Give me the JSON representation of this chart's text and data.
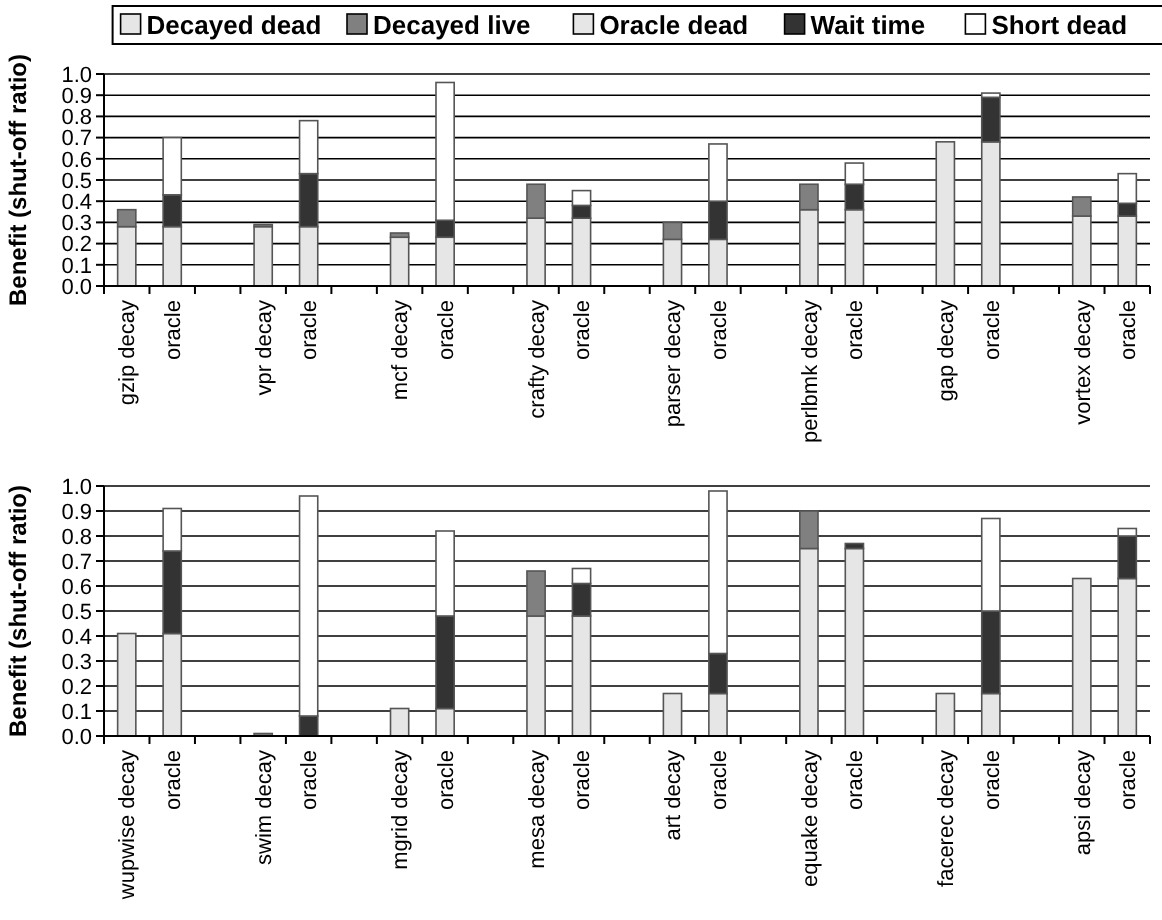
{
  "chart_data": [
    {
      "type": "bar",
      "stacked": true,
      "ylabel": "Benefit (shut-off ratio)",
      "legend": "top",
      "grid": "y",
      "ylim": [
        0,
        1
      ],
      "yticks": [
        {
          "value": 0,
          "label": "0.0"
        },
        {
          "value": 0.1,
          "label": "0.1"
        },
        {
          "value": 0.2,
          "label": "0.2"
        },
        {
          "value": 0.3,
          "label": "0.3"
        },
        {
          "value": 0.4,
          "label": "0.4"
        },
        {
          "value": 0.5,
          "label": "0.5"
        },
        {
          "value": 0.6,
          "label": "0.6"
        },
        {
          "value": 0.7,
          "label": "0.7"
        },
        {
          "value": 0.8,
          "label": "0.8"
        },
        {
          "value": 0.9,
          "label": "0.9"
        },
        {
          "value": 1,
          "label": "1.0"
        }
      ],
      "categories": [
        "gzip decay",
        "oracle",
        null,
        "vpr decay",
        "oracle",
        null,
        "mcf decay",
        "oracle",
        null,
        "crafty decay",
        "oracle",
        null,
        "parser decay",
        "oracle",
        null,
        "perlbmk decay",
        "oracle",
        null,
        "gap decay",
        "oracle",
        null,
        "vortex decay",
        "oracle"
      ],
      "series": [
        {
          "name": "Decayed dead",
          "color": "#e6e6e6",
          "values": [
            0.28,
            null,
            null,
            0.28,
            null,
            null,
            0.23,
            null,
            null,
            0.32,
            null,
            null,
            0.22,
            null,
            null,
            0.36,
            null,
            null,
            0.68,
            null,
            null,
            0.33,
            null
          ]
        },
        {
          "name": "Decayed live",
          "color": "#808080",
          "values": [
            0.08,
            null,
            null,
            0.01,
            null,
            null,
            0.02,
            null,
            null,
            0.16,
            null,
            null,
            0.08,
            null,
            null,
            0.12,
            null,
            null,
            null,
            null,
            null,
            0.09,
            null
          ]
        },
        {
          "name": "Oracle dead",
          "color": "#e6e6e6",
          "values": [
            null,
            0.28,
            null,
            null,
            0.28,
            null,
            null,
            0.23,
            null,
            null,
            0.32,
            null,
            null,
            0.22,
            null,
            null,
            0.36,
            null,
            null,
            0.68,
            null,
            null,
            0.33
          ]
        },
        {
          "name": "Wait time",
          "color": "#333333",
          "values": [
            null,
            0.15,
            null,
            null,
            0.25,
            null,
            null,
            0.08,
            null,
            null,
            0.06,
            null,
            null,
            0.18,
            null,
            null,
            0.12,
            null,
            null,
            0.21,
            null,
            null,
            0.06
          ]
        },
        {
          "name": "Short dead",
          "color": "#ffffff",
          "values": [
            null,
            0.27,
            null,
            null,
            0.25,
            null,
            null,
            0.65,
            null,
            null,
            0.07,
            null,
            null,
            0.27,
            null,
            null,
            0.1,
            null,
            null,
            0.02,
            null,
            null,
            0.14
          ]
        }
      ]
    },
    {
      "type": "bar",
      "stacked": true,
      "ylabel": "Benefit (shut-off ratio)",
      "grid": "y",
      "ylim": [
        0,
        1
      ],
      "yticks": [
        {
          "value": 0,
          "label": "0.0"
        },
        {
          "value": 0.1,
          "label": "0.1"
        },
        {
          "value": 0.2,
          "label": "0.2"
        },
        {
          "value": 0.3,
          "label": "0.3"
        },
        {
          "value": 0.4,
          "label": "0.4"
        },
        {
          "value": 0.5,
          "label": "0.5"
        },
        {
          "value": 0.6,
          "label": "0.6"
        },
        {
          "value": 0.7,
          "label": "0.7"
        },
        {
          "value": 0.8,
          "label": "0.8"
        },
        {
          "value": 0.9,
          "label": "0.9"
        },
        {
          "value": 1,
          "label": "1.0"
        }
      ],
      "categories": [
        "wupwise decay",
        "oracle",
        null,
        "swim decay",
        "oracle",
        null,
        "mgrid decay",
        "oracle",
        null,
        "mesa decay",
        "oracle",
        null,
        "art decay",
        "oracle",
        null,
        "equake decay",
        "oracle",
        null,
        "facerec decay",
        "oracle",
        null,
        "apsi decay",
        "oracle"
      ],
      "series": [
        {
          "color": "#e6e6e6",
          "values": [
            0.41,
            null,
            null,
            null,
            null,
            null,
            0.11,
            null,
            null,
            0.48,
            null,
            null,
            0.17,
            null,
            null,
            0.75,
            null,
            null,
            0.17,
            null,
            null,
            0.63,
            null
          ]
        },
        {
          "color": "#808080",
          "values": [
            null,
            null,
            null,
            0.01,
            null,
            null,
            null,
            null,
            null,
            0.18,
            null,
            null,
            null,
            null,
            null,
            0.15,
            null,
            null,
            null,
            null,
            null,
            null,
            null
          ]
        },
        {
          "color": "#e6e6e6",
          "values": [
            null,
            0.41,
            null,
            null,
            null,
            null,
            null,
            0.11,
            null,
            null,
            0.48,
            null,
            null,
            0.17,
            null,
            null,
            0.75,
            null,
            null,
            0.17,
            null,
            null,
            0.63
          ]
        },
        {
          "color": "#333333",
          "values": [
            null,
            0.33,
            null,
            null,
            0.08,
            null,
            null,
            0.37,
            null,
            null,
            0.13,
            null,
            null,
            0.16,
            null,
            null,
            0.02,
            null,
            null,
            0.33,
            null,
            null,
            0.17
          ]
        },
        {
          "color": "#ffffff",
          "values": [
            null,
            0.17,
            null,
            null,
            0.88,
            null,
            null,
            0.34,
            null,
            null,
            0.06,
            null,
            null,
            0.65,
            null,
            null,
            null,
            null,
            null,
            0.37,
            null,
            null,
            0.03
          ]
        }
      ]
    }
  ]
}
